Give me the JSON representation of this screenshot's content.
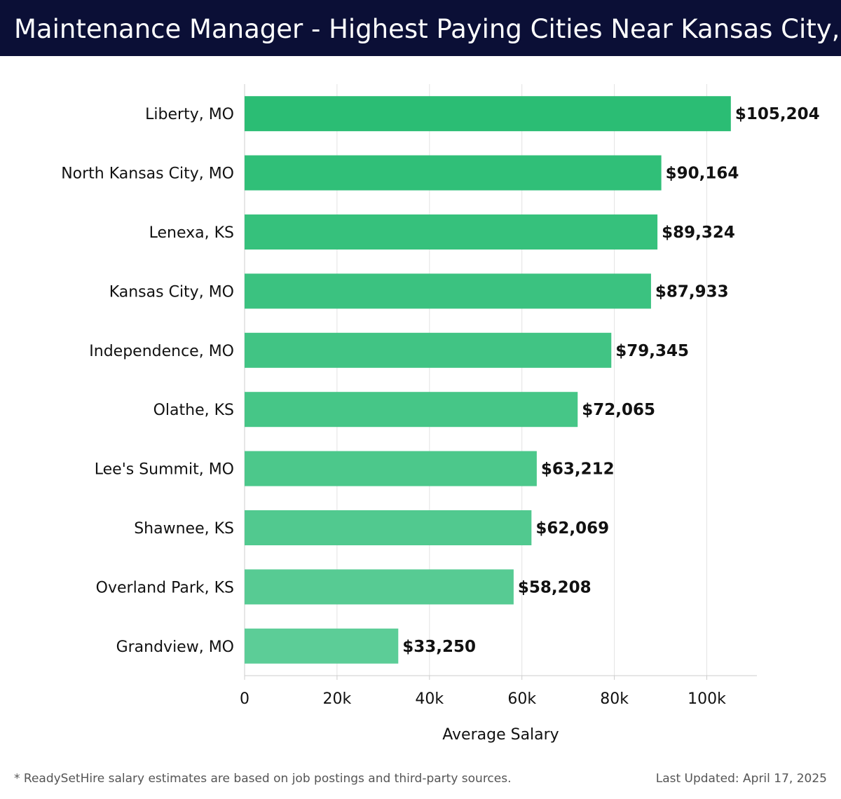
{
  "header": {
    "title": "Maintenance Manager - Highest Paying Cities Near Kansas City, KS"
  },
  "chart_data": {
    "type": "bar",
    "orientation": "horizontal",
    "categories": [
      "Liberty, MO",
      "North Kansas City, MO",
      "Lenexa, KS",
      "Kansas City, MO",
      "Independence, MO",
      "Olathe, KS",
      "Lee's Summit, MO",
      "Shawnee, KS",
      "Overland Park, KS",
      "Grandview, MO"
    ],
    "values": [
      105204,
      90164,
      89324,
      87933,
      79345,
      72065,
      63212,
      62069,
      58208,
      33250
    ],
    "value_labels": [
      "$105,204",
      "$90,164",
      "$89,324",
      "$87,933",
      "$79,345",
      "$72,065",
      "$63,212",
      "$62,069",
      "$58,208",
      "$33,250"
    ],
    "xlabel": "Average Salary",
    "ylabel": "",
    "xlim": [
      0,
      110000
    ],
    "x_ticks": [
      0,
      20000,
      40000,
      60000,
      80000,
      100000
    ],
    "x_tick_labels": [
      "0",
      "20k",
      "40k",
      "60k",
      "80k",
      "100k"
    ],
    "grid": "vertical",
    "colors": {
      "bar_top": "#2bbd74",
      "bar_bottom": "#5ccd97",
      "grid": "#e3e3e3",
      "axis": "#cccccc",
      "text": "#111111",
      "header_bg": "#0b0f36"
    }
  },
  "footer": {
    "note": "* ReadySetHire salary estimates are based on job postings and third-party sources.",
    "updated": "Last Updated: April 17, 2025"
  }
}
